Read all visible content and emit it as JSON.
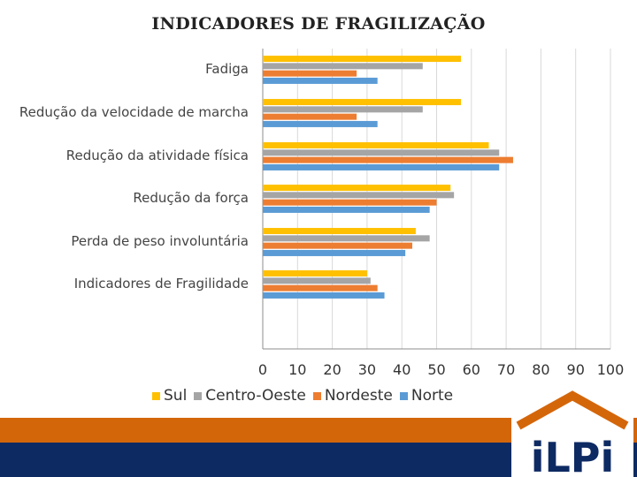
{
  "chart_data": {
    "type": "bar",
    "orientation": "horizontal",
    "title": "INDICADORES DE FRAGILIZAÇÃO",
    "categories": [
      "Fadiga",
      "Redução da velocidade de marcha",
      "Redução da atividade física",
      "Redução da força",
      "Perda de peso involuntária",
      "Indicadores de Fragilidade"
    ],
    "series": [
      {
        "name": "Sul",
        "color": "#ffc000",
        "values": [
          57,
          57,
          65,
          54,
          44,
          30
        ]
      },
      {
        "name": "Centro-Oeste",
        "color": "#a5a5a5",
        "values": [
          46,
          46,
          68,
          55,
          48,
          31
        ]
      },
      {
        "name": "Nordeste",
        "color": "#ed7d31",
        "values": [
          27,
          27,
          72,
          50,
          43,
          33
        ]
      },
      {
        "name": "Norte",
        "color": "#5b9bd5",
        "values": [
          33,
          33,
          68,
          48,
          41,
          35
        ]
      }
    ],
    "xlim": [
      0,
      100
    ],
    "xticks": [
      "0",
      "10",
      "20",
      "30",
      "40",
      "50",
      "60",
      "70",
      "80",
      "90",
      "100"
    ],
    "grid": true,
    "legend_position": "bottom"
  },
  "footer": {
    "logo_text": "iLPi",
    "colors": {
      "orange": "#d4660a",
      "navy": "#0e2a63"
    }
  }
}
